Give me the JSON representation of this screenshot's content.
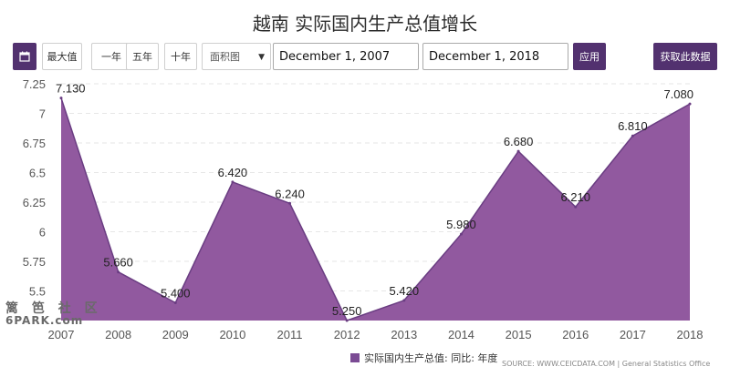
{
  "title": "越南 实际国内生产总值增长",
  "toolbar": {
    "calendar_icon": "calendar-icon",
    "max_label": "最大值",
    "one_year_label": "一年",
    "five_year_label": "五年",
    "ten_year_label": "十年",
    "chart_type_value": "面积图",
    "start_date": "December 1, 2007",
    "end_date": "December 1, 2018",
    "apply_label": "应用",
    "get_data_label": "获取此数据"
  },
  "source": "SOURCE: WWW.CEICDATA.COM | General Statistics Office",
  "watermark": {
    "line1": "篱 笆 社 区",
    "line2": "6PARK.com"
  },
  "colors": {
    "fill": "#91599f",
    "stroke": "#6a3d82",
    "accent": "#52316f"
  },
  "chart_data": {
    "type": "area",
    "x": [
      "2007",
      "2008",
      "2009",
      "2010",
      "2011",
      "2012",
      "2013",
      "2014",
      "2015",
      "2016",
      "2017",
      "2018"
    ],
    "series": [
      {
        "name": "实际国内生产总值: 同比: 年度",
        "values": [
          7.13,
          5.66,
          5.4,
          6.42,
          6.24,
          5.25,
          5.42,
          5.98,
          6.68,
          6.21,
          6.81,
          7.08
        ],
        "labels": [
          "7.130",
          "5.660",
          "5.400",
          "6.420",
          "6.240",
          "5.250",
          "5.420",
          "5.980",
          "6.680",
          "6.210",
          "6.810",
          "7.080"
        ]
      }
    ],
    "y_ticks": [
      "5.5",
      "5.75",
      "6",
      "6.25",
      "6.5",
      "6.75",
      "7",
      "7.25"
    ],
    "y_tick_values": [
      5.5,
      5.75,
      6,
      6.25,
      6.5,
      6.75,
      7,
      7.25
    ],
    "ylim": [
      5.25,
      7.25
    ],
    "grid": true,
    "legend": "bottom-center"
  }
}
